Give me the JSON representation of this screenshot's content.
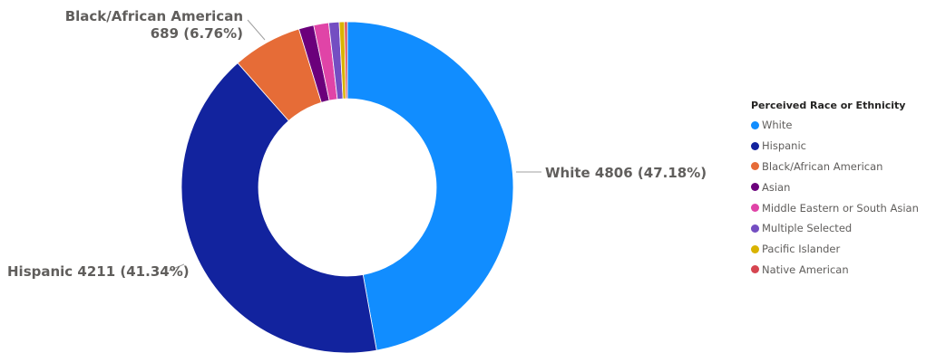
{
  "chart_data": {
    "type": "pie",
    "legend_title": "Perceived Race or Ethnicity",
    "legend_position": "right",
    "categories": [
      "White",
      "Hispanic",
      "Black/African American",
      "Asian",
      "Middle Eastern or South Asian",
      "Multiple Selected",
      "Pacific Islander",
      "Native American"
    ],
    "values": [
      4806,
      4211,
      689,
      149,
      149,
      103,
      52,
      28
    ],
    "colors": [
      "#118DFF",
      "#12239E",
      "#E66C37",
      "#6B007B",
      "#E044A7",
      "#744EC2",
      "#D9B300",
      "#D64550"
    ],
    "data_labels": {
      "white": "White 4806 (47.18%)",
      "hispanic": "Hispanic 4211 (41.34%)",
      "black_line1": "Black/African American",
      "black_line2": "689 (6.76%)"
    }
  }
}
